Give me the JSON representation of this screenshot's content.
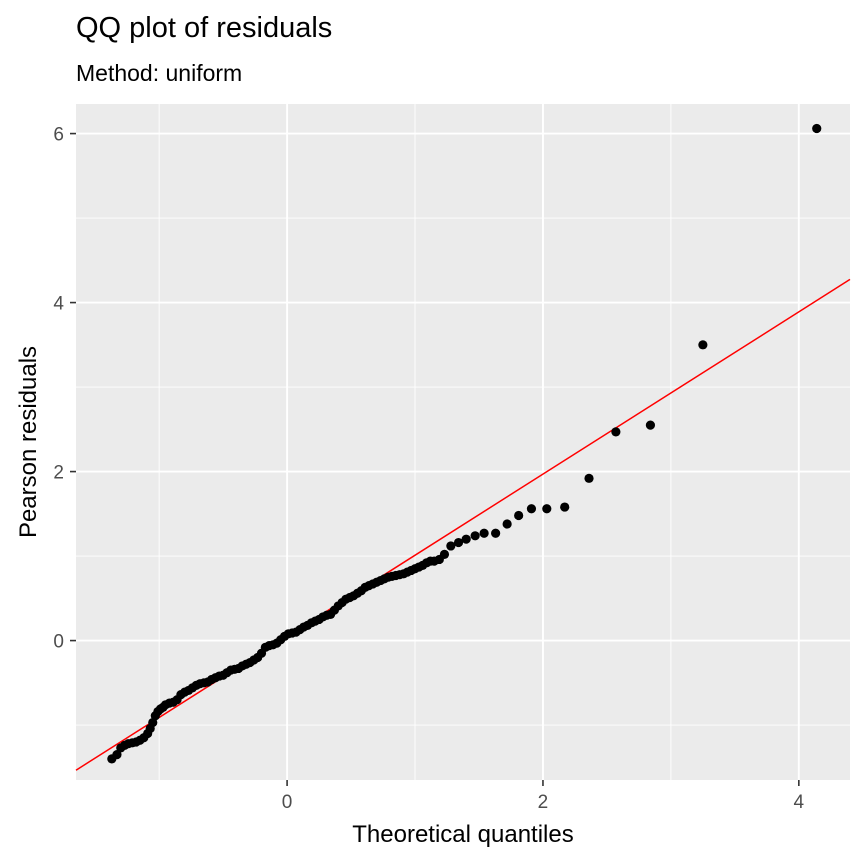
{
  "chart_data": {
    "type": "scatter",
    "title": "QQ plot of residuals",
    "subtitle": "Method: uniform",
    "xlabel": "Theoretical quantiles",
    "ylabel": "Pearson residuals",
    "xlim": [
      -1.65,
      4.4
    ],
    "ylim": [
      -1.65,
      6.35
    ],
    "xticks": [
      0,
      2,
      4
    ],
    "xtick_labels": [
      "0",
      "2",
      "4"
    ],
    "yticks": [
      0,
      2,
      4,
      6
    ],
    "ytick_labels": [
      "0",
      "2",
      "4",
      "6"
    ],
    "grid": true,
    "legend": "none",
    "colors": {
      "panel_background": "#ebebeb",
      "grid_line": "#ffffff",
      "points": "#000000",
      "reference_line": "#ff0000"
    },
    "reference_line": {
      "intercept": 0.05,
      "slope": 0.96
    },
    "points": {
      "x": [
        -1.37,
        -1.33,
        -1.3,
        -1.27,
        -1.24,
        -1.21,
        -1.18,
        -1.15,
        -1.12,
        -1.09,
        -1.07,
        -1.05,
        -1.03,
        -1.01,
        -0.99,
        -0.97,
        -0.95,
        -0.92,
        -0.89,
        -0.86,
        -0.83,
        -0.8,
        -0.77,
        -0.74,
        -0.71,
        -0.68,
        -0.65,
        -0.62,
        -0.59,
        -0.56,
        -0.53,
        -0.5,
        -0.47,
        -0.44,
        -0.41,
        -0.38,
        -0.35,
        -0.32,
        -0.29,
        -0.26,
        -0.23,
        -0.2,
        -0.17,
        -0.14,
        -0.11,
        -0.08,
        -0.05,
        -0.02,
        0.01,
        0.04,
        0.07,
        0.1,
        0.13,
        0.16,
        0.19,
        0.22,
        0.25,
        0.28,
        0.31,
        0.34,
        0.37,
        0.4,
        0.43,
        0.46,
        0.49,
        0.52,
        0.55,
        0.58,
        0.61,
        0.64,
        0.67,
        0.7,
        0.73,
        0.76,
        0.79,
        0.82,
        0.85,
        0.88,
        0.91,
        0.94,
        0.97,
        1.0,
        1.03,
        1.06,
        1.09,
        1.12,
        1.15,
        1.19,
        1.23,
        1.28,
        1.34,
        1.4,
        1.47,
        1.54,
        1.63,
        1.72,
        1.81,
        1.91,
        2.03,
        2.17,
        2.36,
        2.57,
        2.84,
        3.25,
        4.14
      ],
      "y": [
        -1.4,
        -1.35,
        -1.27,
        -1.24,
        -1.22,
        -1.21,
        -1.2,
        -1.18,
        -1.15,
        -1.1,
        -1.04,
        -0.97,
        -0.89,
        -0.84,
        -0.81,
        -0.79,
        -0.76,
        -0.74,
        -0.73,
        -0.7,
        -0.64,
        -0.61,
        -0.59,
        -0.56,
        -0.53,
        -0.51,
        -0.5,
        -0.49,
        -0.46,
        -0.44,
        -0.42,
        -0.41,
        -0.38,
        -0.35,
        -0.34,
        -0.33,
        -0.3,
        -0.28,
        -0.26,
        -0.23,
        -0.2,
        -0.15,
        -0.08,
        -0.06,
        -0.05,
        -0.03,
        0.01,
        0.05,
        0.08,
        0.09,
        0.1,
        0.13,
        0.16,
        0.18,
        0.21,
        0.23,
        0.25,
        0.28,
        0.3,
        0.31,
        0.36,
        0.41,
        0.45,
        0.49,
        0.51,
        0.53,
        0.56,
        0.59,
        0.63,
        0.65,
        0.67,
        0.69,
        0.71,
        0.73,
        0.75,
        0.76,
        0.77,
        0.78,
        0.79,
        0.81,
        0.83,
        0.85,
        0.87,
        0.89,
        0.92,
        0.94,
        0.94,
        0.96,
        1.02,
        1.12,
        1.16,
        1.2,
        1.24,
        1.27,
        1.27,
        1.38,
        1.48,
        1.56,
        1.56,
        1.58,
        1.92,
        2.47,
        2.55,
        3.5,
        6.06
      ]
    }
  }
}
